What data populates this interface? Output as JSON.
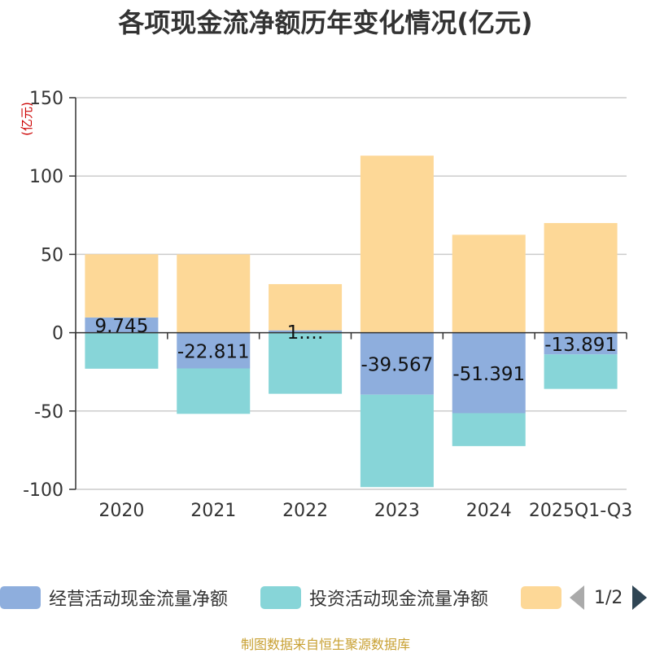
{
  "chart_data": {
    "type": "bar",
    "stacked": true,
    "title": "各项现金流净额历年变化情况(亿元)",
    "ylabel": "(亿元)",
    "categories": [
      "2020",
      "2021",
      "2022",
      "2023",
      "2024",
      "2025Q1-Q3"
    ],
    "ylim": [
      -100,
      150
    ],
    "yticks": [
      150,
      100,
      50,
      0,
      -50,
      -100
    ],
    "grid": true,
    "legend_position": "bottom",
    "series": [
      {
        "name": "经营活动现金流量净额",
        "color": "#8eaedd",
        "values": [
          9.745,
          -22.811,
          1.5,
          -39.567,
          -51.391,
          -13.891
        ],
        "labels": [
          "9.745",
          "-22.811",
          "1.…",
          "-39.567",
          "-51.391",
          "-13.891"
        ]
      },
      {
        "name": "投资活动现金流量净额",
        "color": "#87d5d8",
        "values": [
          -23,
          -29,
          -39,
          -59,
          -21,
          -22
        ]
      },
      {
        "name": "",
        "color": "#fdd897",
        "values": [
          40.3,
          50,
          29.5,
          113,
          62.5,
          70
        ]
      }
    ]
  },
  "legend": {
    "page_indicator": "1/2"
  },
  "source_note": "制图数据来自恒生聚源数据库"
}
